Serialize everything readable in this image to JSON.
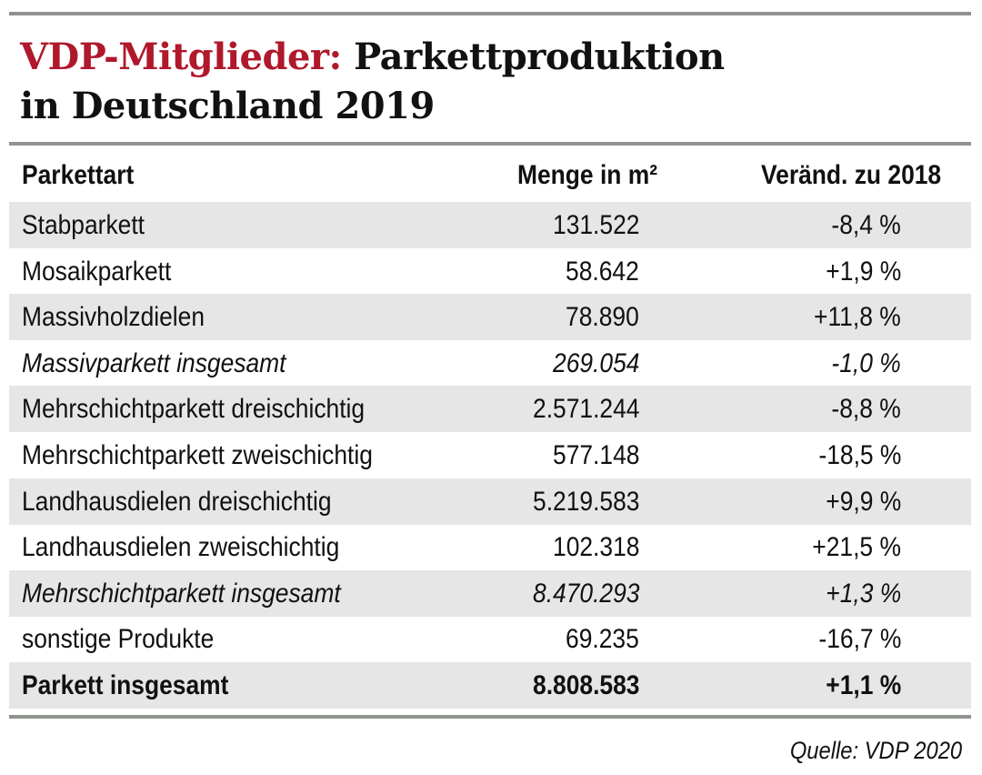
{
  "title": {
    "highlight": "VDP-Mitglieder:",
    "rest": " Parkettproduktion",
    "line2": "in Deutschland 2019"
  },
  "colors": {
    "accent": "#b0182b",
    "rule": "#8e948d",
    "row_shade": "#e6e6e6"
  },
  "table": {
    "headers": [
      "Parkettart",
      "Menge in m²",
      "Veränd. zu 2018"
    ],
    "rows": [
      {
        "name": "Stabparkett",
        "menge": "131.522",
        "change": "-8,4 %",
        "style": "normal"
      },
      {
        "name": "Mosaikparkett",
        "menge": "58.642",
        "change": "+1,9 %",
        "style": "normal"
      },
      {
        "name": "Massivholzdielen",
        "menge": "78.890",
        "change": "+11,8 %",
        "style": "normal"
      },
      {
        "name": "Massivparkett insgesamt",
        "menge": "269.054",
        "change": "-1,0 %",
        "style": "italic"
      },
      {
        "name": "Mehrschichtparkett dreischichtig",
        "menge": "2.571.244",
        "change": "-8,8 %",
        "style": "normal"
      },
      {
        "name": "Mehrschichtparkett zweischichtig",
        "menge": "577.148",
        "change": "-18,5 %",
        "style": "normal"
      },
      {
        "name": "Landhausdielen dreischichtig",
        "menge": "5.219.583",
        "change": "+9,9 %",
        "style": "normal"
      },
      {
        "name": "Landhausdielen zweischichtig",
        "menge": "102.318",
        "change": "+21,5 %",
        "style": "normal"
      },
      {
        "name": "Mehrschichtparkett insgesamt",
        "menge": "8.470.293",
        "change": "+1,3 %",
        "style": "italic"
      },
      {
        "name": "sonstige Produkte",
        "menge": "69.235",
        "change": "-16,7 %",
        "style": "normal"
      },
      {
        "name": "Parkett insgesamt",
        "menge": "8.808.583",
        "change": "+1,1 %",
        "style": "bold"
      }
    ]
  },
  "source": "Quelle: VDP 2020"
}
